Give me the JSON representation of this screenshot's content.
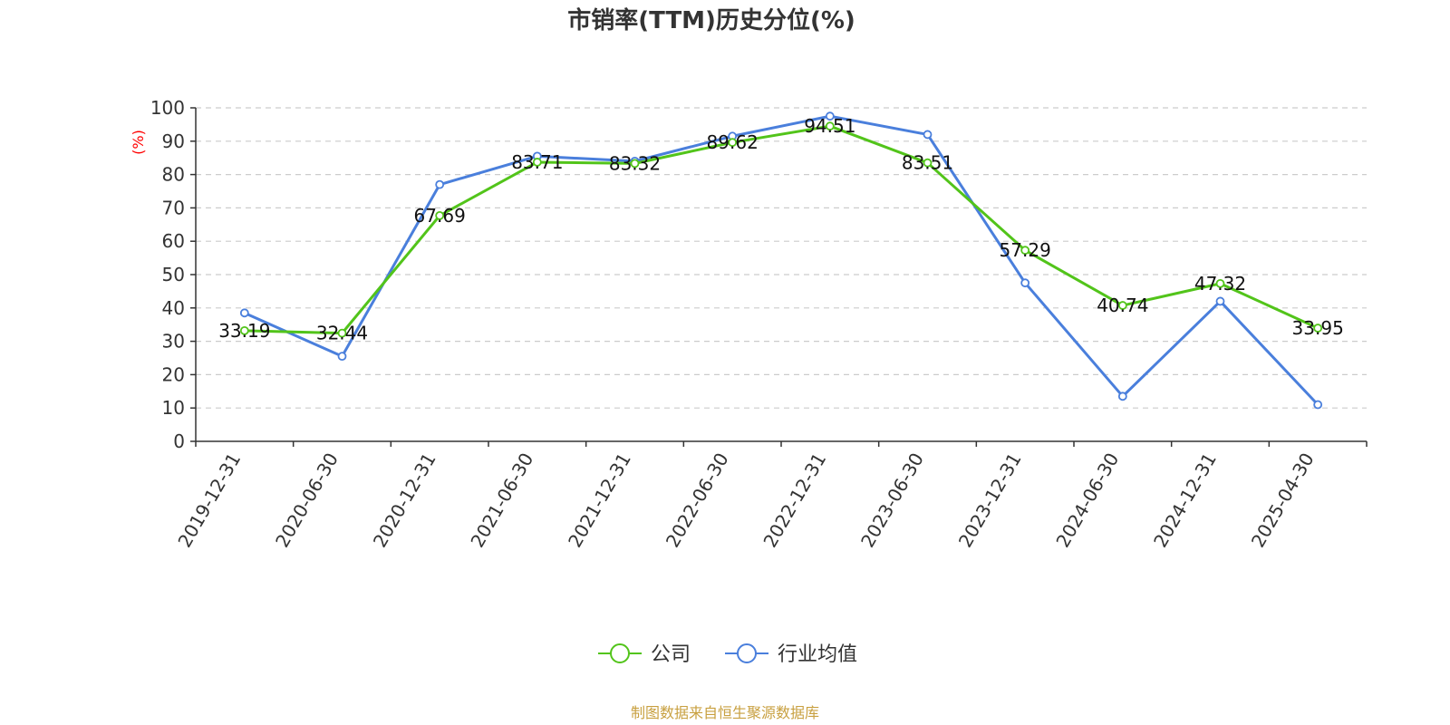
{
  "chart_data": {
    "type": "line",
    "title": "市销率(TTM)历史分位(%)",
    "ylabel": "(%)",
    "xlabel": "",
    "ylim": [
      0,
      100
    ],
    "yticks": [
      0,
      10,
      20,
      30,
      40,
      50,
      60,
      70,
      80,
      90,
      100
    ],
    "grid": true,
    "legend_position": "bottom-center",
    "categories": [
      "2019-12-31",
      "2020-06-30",
      "2020-12-31",
      "2021-06-30",
      "2021-12-31",
      "2022-06-30",
      "2022-12-31",
      "2023-06-30",
      "2023-12-31",
      "2024-06-30",
      "2024-12-31",
      "2025-04-30"
    ],
    "series": [
      {
        "name": "公司",
        "color": "#52c41a",
        "values": [
          33.19,
          32.44,
          67.69,
          83.71,
          83.32,
          89.62,
          94.51,
          83.51,
          57.29,
          40.74,
          47.32,
          33.95
        ],
        "data_labels": [
          "33.19",
          "32.44",
          "67.69",
          "83.71",
          "83.32",
          "89.62",
          "94.51",
          "83.51",
          "57.29",
          "40.74",
          "47.32",
          "33.95"
        ]
      },
      {
        "name": "行业均值",
        "color": "#4a7fdc",
        "values": [
          38.5,
          25.5,
          77.0,
          85.5,
          84.0,
          91.5,
          97.5,
          92.0,
          47.5,
          13.5,
          42.0,
          11.0
        ]
      }
    ]
  },
  "source_text": "制图数据来自恒生聚源数据库",
  "colors": {
    "ylabel": "#ff0000",
    "source": "#c8a040",
    "axis": "#333333",
    "grid": "#cccccc"
  }
}
